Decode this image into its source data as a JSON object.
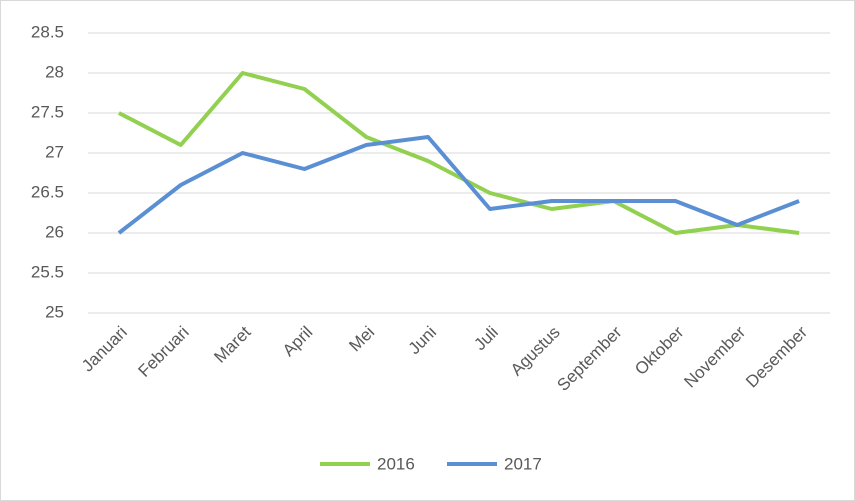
{
  "chart_data": {
    "type": "line",
    "categories": [
      "Januari",
      "Februari",
      "Maret",
      "April",
      "Mei",
      "Juni",
      "Juli",
      "Agustus",
      "September",
      "Oktober",
      "November",
      "Desember"
    ],
    "series": [
      {
        "name": "2016",
        "color": "#92d050",
        "values": [
          27.5,
          27.1,
          28,
          27.8,
          27.2,
          26.9,
          26.5,
          26.3,
          26.4,
          26.0,
          26.1,
          26.0
        ]
      },
      {
        "name": "2017",
        "color": "#5b8fd4",
        "values": [
          26.0,
          26.6,
          27.0,
          26.8,
          27.1,
          27.2,
          26.3,
          26.4,
          26.4,
          26.4,
          26.1,
          26.4
        ]
      }
    ],
    "ylim": [
      25,
      28.5
    ],
    "yticks": [
      25,
      25.5,
      26,
      26.5,
      27,
      27.5,
      28,
      28.5
    ],
    "grid": true,
    "legend": "bottom"
  }
}
